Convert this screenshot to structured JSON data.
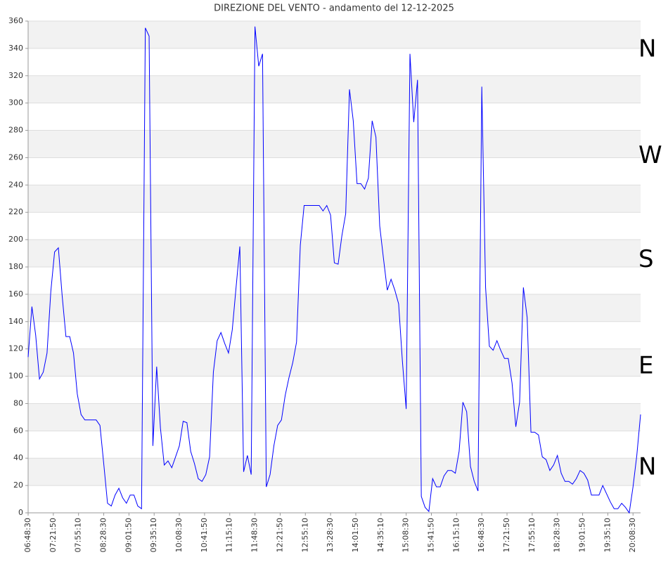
{
  "chart_data": {
    "type": "line",
    "title": "DIREZIONE DEL VENTO - andamento del 12-12-2025",
    "x": [
      "06:48:30",
      "06:53:30",
      "06:58:30",
      "07:03:30",
      "07:08:30",
      "07:13:30",
      "07:18:30",
      "07:23:30",
      "07:28:30",
      "07:33:30",
      "07:38:30",
      "07:43:30",
      "07:48:30",
      "07:53:30",
      "07:58:30",
      "08:03:30",
      "08:08:30",
      "08:13:30",
      "08:18:30",
      "08:23:30",
      "08:28:30",
      "08:33:30",
      "08:38:30",
      "08:43:30",
      "08:48:30",
      "08:53:30",
      "08:58:30",
      "09:03:30",
      "09:08:30",
      "09:13:30",
      "09:18:30",
      "09:23:30",
      "09:28:30",
      "09:33:30",
      "09:38:30",
      "09:43:30",
      "09:48:30",
      "09:53:30",
      "09:58:30",
      "10:03:30",
      "10:08:30",
      "10:13:30",
      "10:18:30",
      "10:23:30",
      "10:28:30",
      "10:33:30",
      "10:38:30",
      "10:43:30",
      "10:48:30",
      "10:53:30",
      "10:58:30",
      "11:03:30",
      "11:08:30",
      "11:13:30",
      "11:18:30",
      "11:23:30",
      "11:28:30",
      "11:33:30",
      "11:38:30",
      "11:43:30",
      "11:48:30",
      "11:53:30",
      "11:58:30",
      "12:03:30",
      "12:08:30",
      "12:13:30",
      "12:18:30",
      "12:23:30",
      "12:28:30",
      "12:33:30",
      "12:38:30",
      "12:43:30",
      "12:48:30",
      "12:53:30",
      "12:58:30",
      "13:03:30",
      "13:08:30",
      "13:13:30",
      "13:18:30",
      "13:23:30",
      "13:28:30",
      "13:33:30",
      "13:38:30",
      "13:43:30",
      "13:48:30",
      "13:53:30",
      "13:58:30",
      "14:03:30",
      "14:08:30",
      "14:13:30",
      "14:18:30",
      "14:23:30",
      "14:28:30",
      "14:33:30",
      "14:38:30",
      "14:43:30",
      "14:48:30",
      "14:53:30",
      "14:58:30",
      "15:03:30",
      "15:08:30",
      "15:13:30",
      "15:18:30",
      "15:23:30",
      "15:28:30",
      "15:33:30",
      "15:38:30",
      "15:43:30",
      "15:48:30",
      "15:53:30",
      "15:58:30",
      "16:03:30",
      "16:08:30",
      "16:13:30",
      "16:18:30",
      "16:23:30",
      "16:28:30",
      "16:33:30",
      "16:38:30",
      "16:43:30",
      "16:48:30",
      "16:53:30",
      "16:58:30",
      "17:03:30",
      "17:08:30",
      "17:13:30",
      "17:18:30",
      "17:23:30",
      "17:28:30",
      "17:33:30",
      "17:38:30",
      "17:43:30",
      "17:48:30",
      "17:53:30",
      "17:58:30",
      "18:03:30",
      "18:08:30",
      "18:13:30",
      "18:18:30",
      "18:23:30",
      "18:28:30",
      "18:33:30",
      "18:38:30",
      "18:43:30",
      "18:48:30",
      "18:53:30",
      "18:58:30",
      "19:03:30",
      "19:08:30",
      "19:13:30",
      "19:18:30",
      "19:23:30",
      "19:28:30",
      "19:33:30",
      "19:38:30",
      "19:43:30",
      "19:48:30",
      "19:53:30",
      "19:58:30",
      "20:03:30",
      "20:08:30",
      "20:13:30",
      "20:18:30"
    ],
    "series": [
      {
        "color": "#0000ff",
        "values": [
          114,
          151,
          130,
          98,
          103,
          117,
          162,
          191,
          194,
          159,
          129,
          129,
          117,
          87,
          72,
          68,
          68,
          68,
          68,
          64,
          36,
          7,
          5,
          13,
          18,
          11,
          7,
          13,
          13,
          5,
          3,
          355,
          349,
          49,
          107,
          62,
          35,
          38,
          33,
          41,
          49,
          67,
          66,
          45,
          36,
          25,
          23,
          28,
          41,
          103,
          126,
          132,
          124,
          117,
          134,
          165,
          195,
          30,
          42,
          28,
          356,
          327,
          336,
          19,
          28,
          49,
          64,
          68,
          86,
          99,
          110,
          125,
          196,
          225,
          225,
          225,
          225,
          225,
          221,
          225,
          218,
          183,
          182,
          203,
          219,
          310,
          287,
          241,
          241,
          237,
          245,
          287,
          275,
          210,
          186,
          163,
          171,
          163,
          153,
          111,
          76,
          336,
          286,
          317,
          12,
          4,
          1,
          25,
          19,
          19,
          27,
          31,
          31,
          29,
          45,
          81,
          74,
          34,
          23,
          16,
          312,
          165,
          122,
          119,
          126,
          119,
          113,
          113,
          95,
          63,
          81,
          165,
          143,
          59,
          59,
          57,
          41,
          39,
          31,
          35,
          42,
          29,
          23,
          23,
          21,
          25,
          31,
          29,
          24,
          13,
          13,
          13,
          20,
          14,
          8,
          3,
          3,
          7,
          4,
          0,
          19,
          42,
          72
        ]
      }
    ],
    "xlim": [
      "06:48:30",
      "20:18:30"
    ],
    "xticks": [
      "06:48:30",
      "07:21:50",
      "07:55:10",
      "08:28:30",
      "09:01:50",
      "09:35:10",
      "10:08:30",
      "10:41:50",
      "11:15:10",
      "11:48:30",
      "12:21:50",
      "12:55:10",
      "13:28:30",
      "14:01:50",
      "14:35:10",
      "15:08:30",
      "15:41:50",
      "16:15:10",
      "16:48:30",
      "17:21:50",
      "17:55:10",
      "18:28:30",
      "19:01:50",
      "19:35:10",
      "20:08:30"
    ],
    "ylim": [
      0,
      360
    ],
    "yticks": [
      0,
      20,
      40,
      60,
      80,
      100,
      120,
      140,
      160,
      180,
      200,
      220,
      240,
      260,
      280,
      300,
      320,
      340,
      360
    ],
    "grid": true,
    "band_color": "#f2f2f2",
    "annotations": [
      {
        "text": "N",
        "y": 339
      },
      {
        "text": "W",
        "y": 261
      },
      {
        "text": "S",
        "y": 185
      },
      {
        "text": "E",
        "y": 107
      },
      {
        "text": "N",
        "y": 33
      }
    ]
  }
}
